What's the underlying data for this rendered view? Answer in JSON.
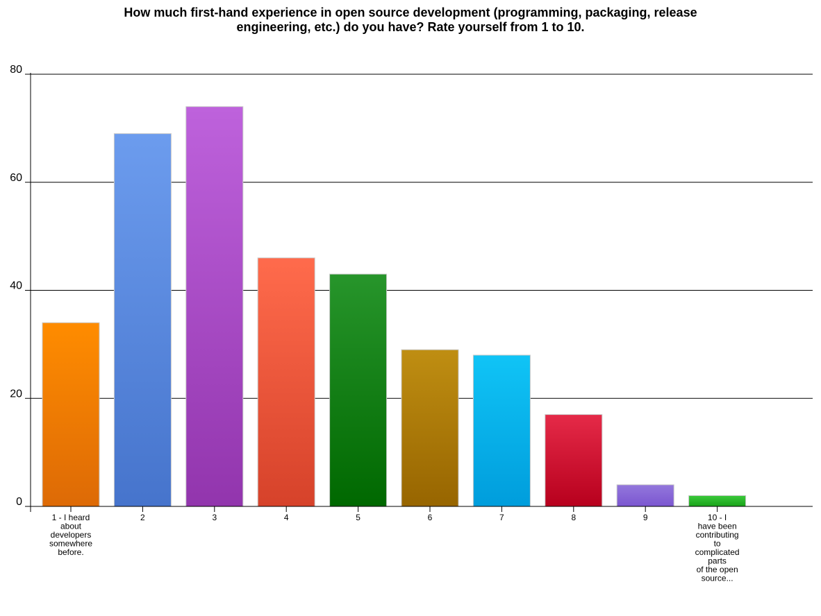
{
  "chart_data": {
    "type": "bar",
    "title_lines": [
      "How much first-hand experience in open source development (programming, packaging, release",
      "engineering, etc.) do you have? Rate yourself from 1 to 10."
    ],
    "categories": [
      [
        "1 - I heard",
        "about",
        "developers",
        "somewhere",
        "before."
      ],
      [
        "2"
      ],
      [
        "3"
      ],
      [
        "4"
      ],
      [
        "5"
      ],
      [
        "6"
      ],
      [
        "7"
      ],
      [
        "8"
      ],
      [
        "9"
      ],
      [
        "10 - I",
        "have been",
        "contributing",
        "to",
        "complicated",
        "parts",
        "of the open",
        "source..."
      ]
    ],
    "values": [
      34,
      69,
      74,
      46,
      43,
      29,
      28,
      17,
      4,
      2
    ],
    "colors": [
      [
        "#ff8c00",
        "#dd6a06"
      ],
      [
        "#6c9cee",
        "#4674cc"
      ],
      [
        "#be62dc",
        "#9235ad"
      ],
      [
        "#ff6b4c",
        "#d6422a"
      ],
      [
        "#27952b",
        "#006800"
      ],
      [
        "#bf8e12",
        "#976500"
      ],
      [
        "#10c4f6",
        "#009ddc"
      ],
      [
        "#e52a48",
        "#b7001d"
      ],
      [
        "#9377dc",
        "#7b56d0"
      ],
      [
        "#3ac93a",
        "#1aa31a"
      ]
    ],
    "y_ticks": [
      0,
      20,
      40,
      60,
      80
    ],
    "ylim": [
      0,
      80
    ],
    "grid": true,
    "legend": false,
    "xlabel": "",
    "ylabel": ""
  }
}
